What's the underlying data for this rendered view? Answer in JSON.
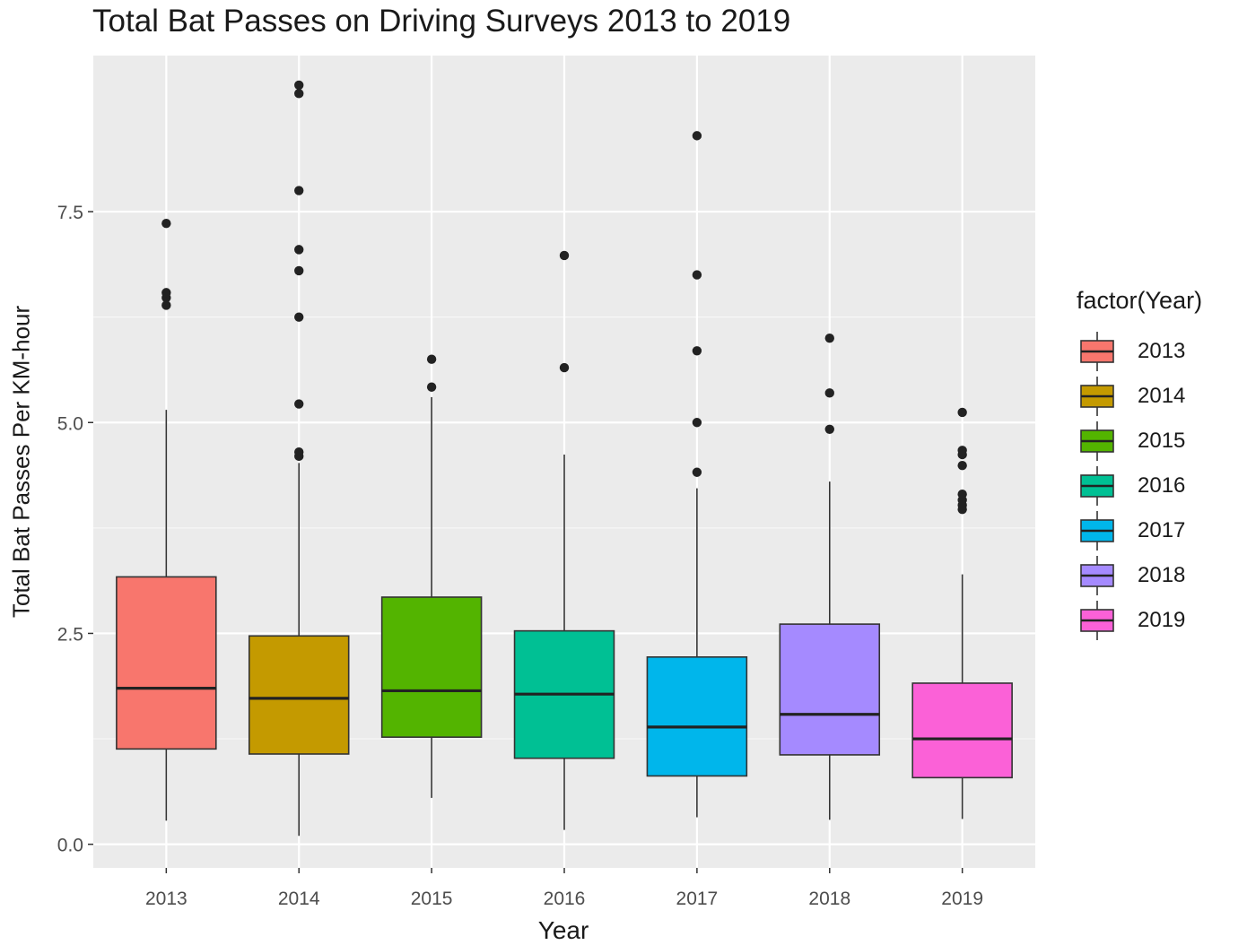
{
  "chart_data": {
    "type": "box",
    "title": "Total Bat Passes on Driving Surveys 2013 to 2019",
    "xlabel": "Year",
    "ylabel": "Total Bat Passes Per KM-hour",
    "ylim": [
      -0.28,
      9.35
    ],
    "yticks": [
      "0.0",
      "2.5",
      "5.0",
      "7.5"
    ],
    "ytick_values": [
      0,
      2.5,
      5.0,
      7.5
    ],
    "grid": true,
    "legend": {
      "title": "factor(Year)",
      "position": "right"
    },
    "categories": [
      "2013",
      "2014",
      "2015",
      "2016",
      "2017",
      "2018",
      "2019"
    ],
    "series": [
      {
        "name": "2013",
        "color": "#F8766D",
        "whisker_low": 0.28,
        "q1": 1.13,
        "median": 1.85,
        "q3": 3.17,
        "whisker_high": 5.15,
        "outliers": [
          6.39,
          6.48,
          6.54,
          7.36
        ]
      },
      {
        "name": "2014",
        "color": "#C49A00",
        "whisker_low": 0.1,
        "q1": 1.07,
        "median": 1.73,
        "q3": 2.47,
        "whisker_high": 4.52,
        "outliers": [
          4.6,
          4.65,
          5.22,
          6.25,
          6.8,
          7.05,
          7.75,
          8.9,
          9.0
        ]
      },
      {
        "name": "2015",
        "color": "#53B400",
        "whisker_low": 0.55,
        "q1": 1.27,
        "median": 1.82,
        "q3": 2.93,
        "whisker_high": 5.3,
        "outliers": [
          5.42,
          5.75
        ]
      },
      {
        "name": "2016",
        "color": "#00C094",
        "whisker_low": 0.17,
        "q1": 1.02,
        "median": 1.78,
        "q3": 2.53,
        "whisker_high": 4.62,
        "outliers": [
          5.65,
          6.98
        ]
      },
      {
        "name": "2017",
        "color": "#00B6EB",
        "whisker_low": 0.32,
        "q1": 0.81,
        "median": 1.39,
        "q3": 2.22,
        "whisker_high": 4.22,
        "outliers": [
          4.41,
          5.0,
          5.85,
          6.75,
          8.4
        ]
      },
      {
        "name": "2018",
        "color": "#A58AFF",
        "whisker_low": 0.29,
        "q1": 1.06,
        "median": 1.54,
        "q3": 2.61,
        "whisker_high": 4.3,
        "outliers": [
          4.92,
          5.35,
          6.0
        ]
      },
      {
        "name": "2019",
        "color": "#FB61D7",
        "whisker_low": 0.3,
        "q1": 0.79,
        "median": 1.25,
        "q3": 1.91,
        "whisker_high": 3.2,
        "outliers": [
          3.97,
          4.02,
          4.08,
          4.15,
          4.49,
          4.62,
          4.67,
          5.12
        ]
      }
    ]
  }
}
